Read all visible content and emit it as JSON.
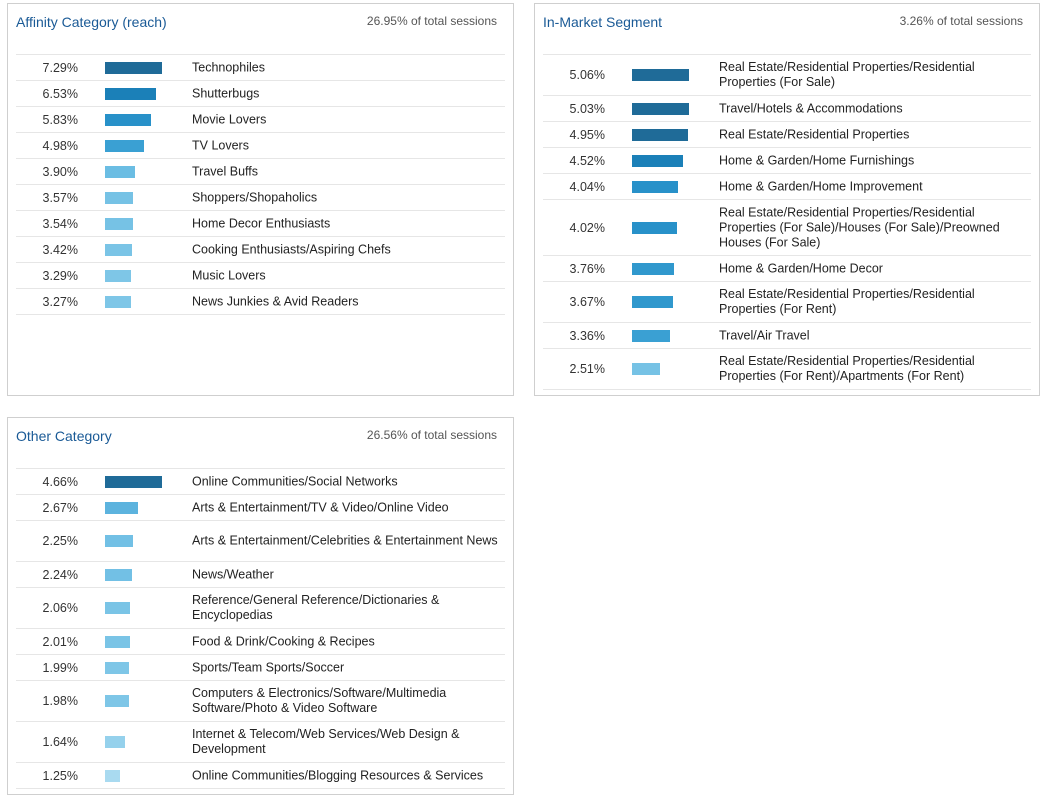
{
  "panels": [
    {
      "id": "affinity",
      "title": "Affinity Category (reach)",
      "subtitle": "26.95% of total sessions",
      "rows": [
        {
          "pct": "7.29%",
          "value": 7.29,
          "label": "Technophiles",
          "color": "#1f6b98"
        },
        {
          "pct": "6.53%",
          "value": 6.53,
          "label": "Shutterbugs",
          "color": "#1b80b8"
        },
        {
          "pct": "5.83%",
          "value": 5.83,
          "label": "Movie Lovers",
          "color": "#2891c9"
        },
        {
          "pct": "4.98%",
          "value": 4.98,
          "label": "TV Lovers",
          "color": "#3aa0d3"
        },
        {
          "pct": "3.90%",
          "value": 3.9,
          "label": "Travel Buffs",
          "color": "#6bbde3"
        },
        {
          "pct": "3.57%",
          "value": 3.57,
          "label": "Shoppers/Shopaholics",
          "color": "#76c2e5"
        },
        {
          "pct": "3.54%",
          "value": 3.54,
          "label": "Home Decor Enthusiasts",
          "color": "#76c2e5"
        },
        {
          "pct": "3.42%",
          "value": 3.42,
          "label": "Cooking Enthusiasts/Aspiring Chefs",
          "color": "#7ac4e6"
        },
        {
          "pct": "3.29%",
          "value": 3.29,
          "label": "Music Lovers",
          "color": "#7ec6e7"
        },
        {
          "pct": "3.27%",
          "value": 3.27,
          "label": "News Junkies & Avid Readers",
          "color": "#7ec6e7"
        }
      ]
    },
    {
      "id": "in-market",
      "title": "In-Market Segment",
      "subtitle": "3.26% of total sessions",
      "rows": [
        {
          "pct": "5.06%",
          "value": 5.06,
          "label": "Real Estate/Residential Properties/Residential Properties (For Sale)",
          "color": "#1f6b98"
        },
        {
          "pct": "5.03%",
          "value": 5.03,
          "label": "Travel/Hotels & Accommodations",
          "color": "#1f6b98"
        },
        {
          "pct": "4.95%",
          "value": 4.95,
          "label": "Real Estate/Residential Properties",
          "color": "#1f6b98"
        },
        {
          "pct": "4.52%",
          "value": 4.52,
          "label": "Home & Garden/Home Furnishings",
          "color": "#1b80b8"
        },
        {
          "pct": "4.04%",
          "value": 4.04,
          "label": "Home & Garden/Home Improvement",
          "color": "#2891c9"
        },
        {
          "pct": "4.02%",
          "value": 4.02,
          "label": "Real Estate/Residential Properties/Residential Properties (For Sale)/Houses (For Sale)/Preowned Houses (For Sale)",
          "color": "#2891c9"
        },
        {
          "pct": "3.76%",
          "value": 3.76,
          "label": "Home & Garden/Home Decor",
          "color": "#3098cd"
        },
        {
          "pct": "3.67%",
          "value": 3.67,
          "label": "Real Estate/Residential Properties/Residential Properties (For Rent)",
          "color": "#3098cd"
        },
        {
          "pct": "3.36%",
          "value": 3.36,
          "label": "Travel/Air Travel",
          "color": "#3aa0d3"
        },
        {
          "pct": "2.51%",
          "value": 2.51,
          "label": "Real Estate/Residential Properties/Residential Properties (For Rent)/Apartments (For Rent)",
          "color": "#76c2e5"
        }
      ]
    },
    {
      "id": "other",
      "title": "Other Category",
      "subtitle": "26.56% of total sessions",
      "rows": [
        {
          "pct": "4.66%",
          "value": 4.66,
          "label": "Online Communities/Social Networks",
          "color": "#1f6b98"
        },
        {
          "pct": "2.67%",
          "value": 2.67,
          "label": "Arts & Entertainment/TV & Video/Online Video",
          "color": "#5cb3de"
        },
        {
          "pct": "2.25%",
          "value": 2.25,
          "label": "Arts & Entertainment/Celebrities & Entertainment News",
          "color": "#72c0e5"
        },
        {
          "pct": "2.24%",
          "value": 2.24,
          "label": "News/Weather",
          "color": "#72c0e5"
        },
        {
          "pct": "2.06%",
          "value": 2.06,
          "label": "Reference/General Reference/Dictionaries & Encyclopedias",
          "color": "#7ac4e6"
        },
        {
          "pct": "2.01%",
          "value": 2.01,
          "label": "Food & Drink/Cooking & Recipes",
          "color": "#7ac4e6"
        },
        {
          "pct": "1.99%",
          "value": 1.99,
          "label": "Sports/Team Sports/Soccer",
          "color": "#7ec6e7"
        },
        {
          "pct": "1.98%",
          "value": 1.98,
          "label": "Computers & Electronics/Software/Multimedia Software/Photo & Video Software",
          "color": "#7ec6e7"
        },
        {
          "pct": "1.64%",
          "value": 1.64,
          "label": "Internet & Telecom/Web Services/Web Design & Development",
          "color": "#95d1ec"
        },
        {
          "pct": "1.25%",
          "value": 1.25,
          "label": "Online Communities/Blogging Resources & Services",
          "color": "#a9daf0"
        }
      ]
    }
  ]
}
